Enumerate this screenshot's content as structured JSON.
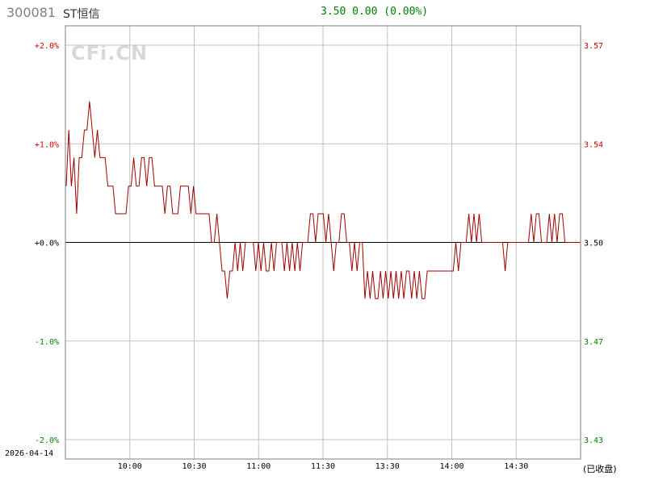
{
  "header": {
    "code": "300081",
    "name": "ST恒信",
    "quote": "3.50 0.00 (0.00%)"
  },
  "watermark": "CFi.CN",
  "date": "2026-04-14",
  "close_note": "(已收盘)",
  "colors": {
    "up": "#cc0000",
    "down": "#008000",
    "price_line": "#a00000",
    "baseline": "#000000",
    "grid": "#c0c0c0"
  },
  "chart_data": {
    "type": "line",
    "title": "",
    "xlabel": "",
    "ylabel": "",
    "prev_close": 3.5,
    "percent_ticks": [
      {
        "value": 2.0,
        "label": "+2.0%"
      },
      {
        "value": 1.0,
        "label": "+1.0%"
      },
      {
        "value": 0.0,
        "label": "+0.0%"
      },
      {
        "value": -1.0,
        "label": "-1.0%"
      },
      {
        "value": -2.0,
        "label": "-2.0%"
      }
    ],
    "price_ticks": [
      {
        "value": 3.57,
        "label": "3.57"
      },
      {
        "value": 3.54,
        "label": "3.54"
      },
      {
        "value": 3.5,
        "label": "3.50"
      },
      {
        "value": 3.47,
        "label": "3.47"
      },
      {
        "value": 3.43,
        "label": "3.43"
      }
    ],
    "x_ticks": [
      "10:00",
      "10:30",
      "11:00",
      "11:30",
      "13:30",
      "14:00",
      "14:30"
    ],
    "ylim_percent": [
      -2.0,
      2.0
    ],
    "grid": true,
    "series": [
      {
        "points": [
          [
            0,
            0.57
          ],
          [
            1,
            1.14
          ],
          [
            2,
            0.57
          ],
          [
            3,
            0.86
          ],
          [
            4,
            0.29
          ],
          [
            5,
            0.86
          ],
          [
            6,
            0.86
          ],
          [
            7,
            1.14
          ],
          [
            8,
            1.14
          ],
          [
            9,
            1.43
          ],
          [
            10,
            1.14
          ],
          [
            11,
            0.86
          ],
          [
            12,
            1.14
          ],
          [
            13,
            0.86
          ],
          [
            14,
            0.86
          ],
          [
            15,
            0.86
          ],
          [
            16,
            0.57
          ],
          [
            17,
            0.57
          ],
          [
            18,
            0.57
          ],
          [
            19,
            0.29
          ],
          [
            20,
            0.29
          ],
          [
            21,
            0.29
          ],
          [
            22,
            0.29
          ],
          [
            23,
            0.29
          ],
          [
            24,
            0.57
          ],
          [
            25,
            0.57
          ],
          [
            26,
            0.86
          ],
          [
            27,
            0.57
          ],
          [
            28,
            0.57
          ],
          [
            29,
            0.86
          ],
          [
            30,
            0.86
          ],
          [
            31,
            0.57
          ],
          [
            32,
            0.86
          ],
          [
            33,
            0.86
          ],
          [
            34,
            0.57
          ],
          [
            35,
            0.57
          ],
          [
            36,
            0.57
          ],
          [
            37,
            0.57
          ],
          [
            38,
            0.29
          ],
          [
            39,
            0.57
          ],
          [
            40,
            0.57
          ],
          [
            41,
            0.29
          ],
          [
            42,
            0.29
          ],
          [
            43,
            0.29
          ],
          [
            44,
            0.57
          ],
          [
            45,
            0.57
          ],
          [
            46,
            0.57
          ],
          [
            47,
            0.57
          ],
          [
            48,
            0.29
          ],
          [
            49,
            0.57
          ],
          [
            50,
            0.29
          ],
          [
            51,
            0.29
          ],
          [
            52,
            0.29
          ],
          [
            53,
            0.29
          ],
          [
            54,
            0.29
          ],
          [
            55,
            0.29
          ],
          [
            56,
            0.0
          ],
          [
            57,
            0.0
          ],
          [
            58,
            0.29
          ],
          [
            59,
            0.0
          ],
          [
            60,
            -0.29
          ],
          [
            61,
            -0.29
          ],
          [
            62,
            -0.57
          ],
          [
            63,
            -0.29
          ],
          [
            64,
            -0.29
          ],
          [
            65,
            0.0
          ],
          [
            66,
            -0.29
          ],
          [
            67,
            0.0
          ],
          [
            68,
            -0.29
          ],
          [
            69,
            0.0
          ],
          [
            70,
            0.0
          ],
          [
            71,
            0.0
          ],
          [
            72,
            0.0
          ],
          [
            73,
            -0.29
          ],
          [
            74,
            0.0
          ],
          [
            75,
            -0.29
          ],
          [
            76,
            0.0
          ],
          [
            77,
            -0.29
          ],
          [
            78,
            -0.29
          ],
          [
            79,
            0.0
          ],
          [
            80,
            -0.29
          ],
          [
            81,
            0.0
          ],
          [
            82,
            0.0
          ],
          [
            83,
            0.0
          ],
          [
            84,
            -0.29
          ],
          [
            85,
            0.0
          ],
          [
            86,
            -0.29
          ],
          [
            87,
            0.0
          ],
          [
            88,
            -0.29
          ],
          [
            89,
            0.0
          ],
          [
            90,
            -0.29
          ],
          [
            91,
            0.0
          ],
          [
            92,
            0.0
          ],
          [
            93,
            0.0
          ],
          [
            94,
            0.29
          ],
          [
            95,
            0.29
          ],
          [
            96,
            0.0
          ],
          [
            97,
            0.29
          ],
          [
            98,
            0.29
          ],
          [
            99,
            0.29
          ],
          [
            100,
            0.0
          ],
          [
            101,
            0.29
          ],
          [
            102,
            0.0
          ],
          [
            103,
            -0.29
          ],
          [
            104,
            0.0
          ],
          [
            105,
            0.0
          ],
          [
            106,
            0.29
          ],
          [
            107,
            0.29
          ],
          [
            108,
            0.0
          ],
          [
            109,
            0.0
          ],
          [
            110,
            -0.29
          ],
          [
            111,
            0.0
          ],
          [
            112,
            -0.29
          ],
          [
            113,
            0.0
          ],
          [
            114,
            0.0
          ],
          [
            115,
            -0.57
          ],
          [
            116,
            -0.29
          ],
          [
            117,
            -0.57
          ],
          [
            118,
            -0.29
          ],
          [
            119,
            -0.57
          ],
          [
            120,
            -0.57
          ],
          [
            121,
            -0.29
          ],
          [
            122,
            -0.57
          ],
          [
            123,
            -0.29
          ],
          [
            124,
            -0.57
          ],
          [
            125,
            -0.29
          ],
          [
            126,
            -0.57
          ],
          [
            127,
            -0.29
          ],
          [
            128,
            -0.57
          ],
          [
            129,
            -0.29
          ],
          [
            130,
            -0.57
          ],
          [
            131,
            -0.29
          ],
          [
            132,
            -0.29
          ],
          [
            133,
            -0.57
          ],
          [
            134,
            -0.29
          ],
          [
            135,
            -0.57
          ],
          [
            136,
            -0.29
          ],
          [
            137,
            -0.57
          ],
          [
            138,
            -0.57
          ],
          [
            139,
            -0.29
          ],
          [
            140,
            -0.29
          ],
          [
            141,
            -0.29
          ],
          [
            142,
            -0.29
          ],
          [
            143,
            -0.29
          ],
          [
            144,
            -0.29
          ],
          [
            145,
            -0.29
          ],
          [
            146,
            -0.29
          ],
          [
            147,
            -0.29
          ],
          [
            148,
            -0.29
          ],
          [
            149,
            -0.29
          ],
          [
            150,
            0.0
          ],
          [
            151,
            -0.29
          ],
          [
            152,
            0.0
          ],
          [
            153,
            0.0
          ],
          [
            154,
            0.0
          ],
          [
            155,
            0.29
          ],
          [
            156,
            0.0
          ],
          [
            157,
            0.29
          ],
          [
            158,
            0.0
          ],
          [
            159,
            0.29
          ],
          [
            160,
            0.0
          ],
          [
            161,
            0.0
          ],
          [
            162,
            0.0
          ],
          [
            163,
            0.0
          ],
          [
            164,
            0.0
          ],
          [
            165,
            0.0
          ],
          [
            166,
            0.0
          ],
          [
            167,
            0.0
          ],
          [
            168,
            0.0
          ],
          [
            169,
            -0.29
          ],
          [
            170,
            0.0
          ],
          [
            171,
            0.0
          ],
          [
            172,
            0.0
          ],
          [
            173,
            0.0
          ],
          [
            174,
            0.0
          ],
          [
            175,
            0.0
          ],
          [
            176,
            0.0
          ],
          [
            177,
            0.0
          ],
          [
            178,
            0.0
          ],
          [
            179,
            0.29
          ],
          [
            180,
            0.0
          ],
          [
            181,
            0.29
          ],
          [
            182,
            0.29
          ],
          [
            183,
            0.0
          ],
          [
            184,
            0.0
          ],
          [
            185,
            0.0
          ],
          [
            186,
            0.29
          ],
          [
            187,
            0.0
          ],
          [
            188,
            0.29
          ],
          [
            189,
            0.0
          ],
          [
            190,
            0.29
          ],
          [
            191,
            0.29
          ],
          [
            192,
            0.0
          ],
          [
            193,
            0.0
          ],
          [
            194,
            0.0
          ]
        ]
      }
    ]
  }
}
